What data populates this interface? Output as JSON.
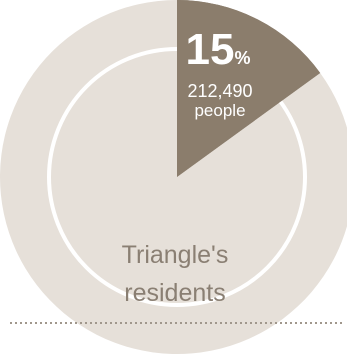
{
  "chart_data": {
    "type": "pie",
    "title": "",
    "slices": [
      {
        "label": "15%",
        "value": 15,
        "count": "212,490",
        "unit": "people",
        "color": "#8b7d6c"
      },
      {
        "label": "",
        "value": 85,
        "color": "#e6e0d9"
      }
    ],
    "center_label": [
      "Triangle's",
      "residents"
    ],
    "inner_ring_color": "#ffffff",
    "divider_color": "#a0978c"
  }
}
